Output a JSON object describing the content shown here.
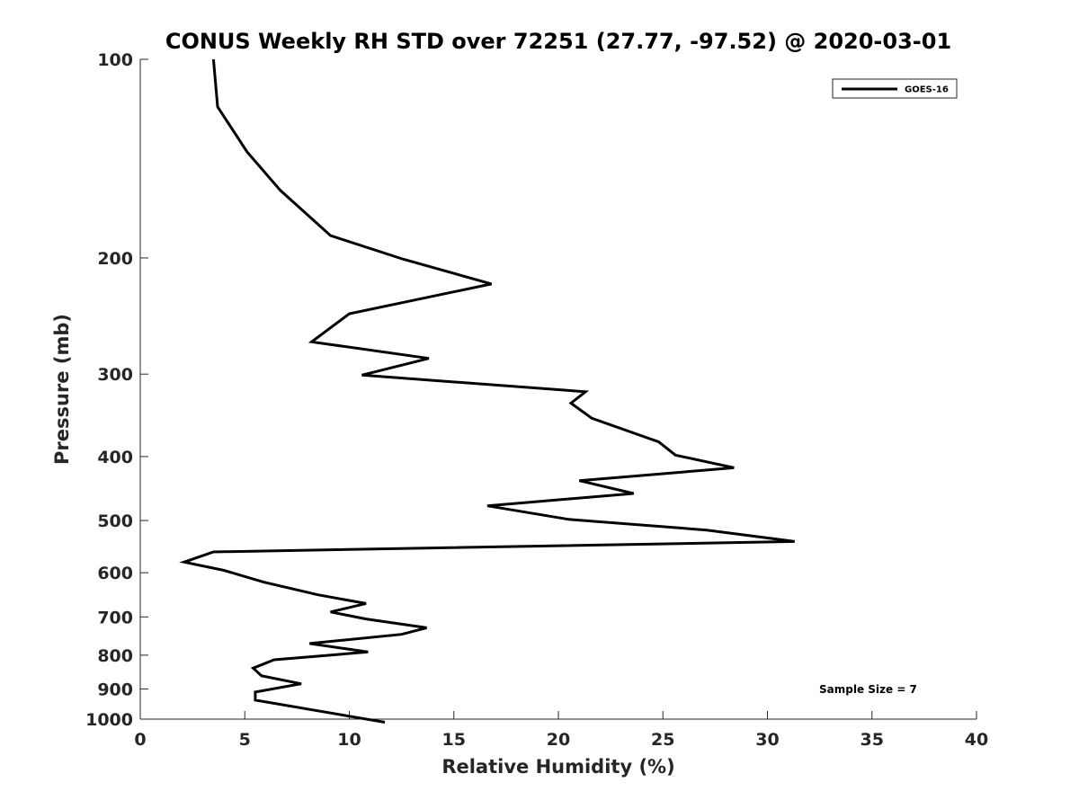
{
  "chart_data": {
    "type": "line",
    "title": "CONUS Weekly RH STD over 72251 (27.77, -97.52) @ 2020-03-01",
    "xlabel": "Relative Humidity (%)",
    "ylabel": "Pressure (mb)",
    "xlim": [
      0,
      40
    ],
    "ylim": [
      100,
      1000
    ],
    "yscale": "log",
    "yreversed": true,
    "grid": false,
    "legend_position": "top-right",
    "x_ticks": [
      0,
      5,
      10,
      15,
      20,
      25,
      30,
      35,
      40
    ],
    "x_tick_labels": [
      "0",
      "5",
      "10",
      "15",
      "20",
      "25",
      "30",
      "35",
      "40"
    ],
    "y_ticks": [
      100,
      200,
      300,
      400,
      500,
      600,
      700,
      800,
      900,
      1000
    ],
    "y_tick_labels": [
      "100",
      "200",
      "300",
      "400",
      "500",
      "600",
      "700",
      "800",
      "900",
      "1000"
    ],
    "series": [
      {
        "name": "GOES-16",
        "color": "#000000",
        "x": [
          3.5,
          3.7,
          5.1,
          6.7,
          9.1,
          12.6,
          16.8,
          10.0,
          8.2,
          13.8,
          10.6,
          21.3,
          20.6,
          21.6,
          24.8,
          25.6,
          28.4,
          21.0,
          23.6,
          16.6,
          20.5,
          27.1,
          31.3,
          3.5,
          2.1,
          4.0,
          5.9,
          8.5,
          10.8,
          9.1,
          10.8,
          13.7,
          12.5,
          8.1,
          10.9,
          6.4,
          5.4,
          5.8,
          7.7,
          5.5,
          5.5,
          11.7
        ],
        "y": [
          100,
          118,
          138,
          158,
          185,
          201,
          219,
          243,
          268,
          284,
          301,
          319,
          332,
          350,
          380,
          398,
          416,
          435,
          455,
          475,
          498,
          517,
          538,
          558,
          578,
          595,
          620,
          648,
          668,
          688,
          705,
          727,
          744,
          768,
          791,
          813,
          837,
          860,
          884,
          910,
          936,
          1011
        ]
      }
    ],
    "annotations": [
      {
        "text": "Sample Size = 7"
      }
    ]
  }
}
